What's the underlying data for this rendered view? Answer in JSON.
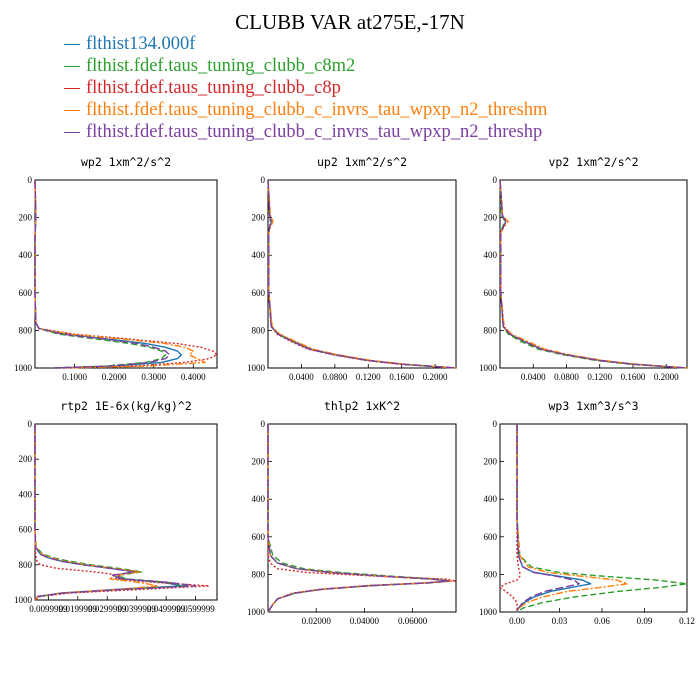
{
  "title": "CLUBB VAR at275E,-17N",
  "legend": [
    {
      "label": "flthist134.000f",
      "color": "#1f77b4",
      "dash": "solid"
    },
    {
      "label": "flthist.fdef.taus_tuning_clubb_c8m2",
      "color": "#2ca02c",
      "dash": "6,3"
    },
    {
      "label": "flthist.fdef.taus_tuning_clubb_c8p",
      "color": "#d62728",
      "dash": "2,2"
    },
    {
      "label": "flthist.fdef.taus_tuning_clubb_c_invrs_tau_wpxp_n2_threshm",
      "color": "#ff7f0e",
      "dash": "7,2,2,2"
    },
    {
      "label": "flthist.fdef.taus_tuning_clubb_c_invrs_tau_wpxp_n2_threshp",
      "color": "#7b3f9e",
      "dash": "8,3"
    }
  ],
  "chart_data": [
    {
      "type": "line",
      "title": "wp2  1xm^2/s^2",
      "xlim": [
        0,
        0.46
      ],
      "ylim": [
        1000,
        0
      ],
      "xticks": [
        0.1,
        0.2,
        0.3,
        0.4
      ],
      "xtick_labels": [
        "0.1000",
        "0.2000",
        "0.3000",
        "0.4000"
      ],
      "yticks": [
        0,
        200,
        400,
        600,
        800,
        1000
      ],
      "ytick_labels": [
        "0",
        "200",
        "400",
        "600",
        "800",
        "1000"
      ],
      "y": [
        0,
        200,
        300,
        600,
        760,
        790,
        820,
        850,
        870,
        890,
        910,
        930,
        950,
        970,
        990,
        1000
      ],
      "series": [
        [
          0.0,
          0.002,
          0.0,
          0.0,
          0.002,
          0.01,
          0.08,
          0.2,
          0.28,
          0.33,
          0.36,
          0.37,
          0.36,
          0.32,
          0.2,
          0.05
        ],
        [
          0.0,
          0.002,
          0.0,
          0.0,
          0.002,
          0.01,
          0.06,
          0.17,
          0.24,
          0.29,
          0.32,
          0.33,
          0.32,
          0.28,
          0.18,
          0.04
        ],
        [
          0.0,
          0.002,
          0.0,
          0.0,
          0.002,
          0.01,
          0.1,
          0.26,
          0.36,
          0.42,
          0.45,
          0.46,
          0.44,
          0.38,
          0.25,
          0.06
        ],
        [
          0.0,
          0.002,
          0.0,
          0.0,
          0.002,
          0.01,
          0.09,
          0.24,
          0.33,
          0.38,
          0.4,
          0.39,
          0.41,
          0.43,
          0.28,
          0.07
        ],
        [
          0.0,
          0.002,
          0.0,
          0.0,
          0.002,
          0.01,
          0.07,
          0.19,
          0.26,
          0.3,
          0.33,
          0.34,
          0.33,
          0.29,
          0.19,
          0.05
        ]
      ]
    },
    {
      "type": "line",
      "title": "up2  1xm^2/s^2",
      "xlim": [
        0,
        0.225
      ],
      "ylim": [
        1000,
        0
      ],
      "xticks": [
        0.04,
        0.08,
        0.12,
        0.16,
        0.2
      ],
      "xtick_labels": [
        "0.0400",
        "0.0800",
        "0.1200",
        "0.1600",
        "0.2000"
      ],
      "yticks": [
        0,
        200,
        400,
        600,
        800,
        1000
      ],
      "ytick_labels": [
        "0",
        "200",
        "400",
        "600",
        "800",
        "1000"
      ],
      "y": [
        0,
        190,
        220,
        250,
        280,
        600,
        780,
        820,
        860,
        900,
        930,
        960,
        980,
        1000
      ],
      "series": [
        [
          0.0,
          0.002,
          0.004,
          0.002,
          0.001,
          0.001,
          0.004,
          0.012,
          0.03,
          0.05,
          0.08,
          0.12,
          0.16,
          0.225
        ],
        [
          0.0,
          0.002,
          0.003,
          0.002,
          0.001,
          0.001,
          0.004,
          0.013,
          0.032,
          0.052,
          0.082,
          0.122,
          0.162,
          0.225
        ],
        [
          0.0,
          0.002,
          0.003,
          0.002,
          0.001,
          0.001,
          0.004,
          0.011,
          0.028,
          0.048,
          0.078,
          0.118,
          0.158,
          0.225
        ],
        [
          0.0,
          0.003,
          0.006,
          0.003,
          0.001,
          0.001,
          0.005,
          0.014,
          0.034,
          0.054,
          0.084,
          0.124,
          0.164,
          0.225
        ],
        [
          0.0,
          0.002,
          0.004,
          0.002,
          0.001,
          0.001,
          0.004,
          0.012,
          0.03,
          0.05,
          0.08,
          0.12,
          0.16,
          0.225
        ]
      ]
    },
    {
      "type": "line",
      "title": "vp2  1xm^2/s^2",
      "xlim": [
        0,
        0.225
      ],
      "ylim": [
        1000,
        0
      ],
      "xticks": [
        0.04,
        0.08,
        0.12,
        0.16,
        0.2
      ],
      "xtick_labels": [
        "0.0400",
        "0.0800",
        "0.1200",
        "0.1600",
        "0.2000"
      ],
      "yticks": [
        0,
        200,
        400,
        600,
        800,
        1000
      ],
      "ytick_labels": [
        "0",
        "200",
        "400",
        "600",
        "800",
        "1000"
      ],
      "y": [
        0,
        190,
        220,
        250,
        280,
        600,
        780,
        820,
        860,
        900,
        930,
        960,
        980,
        1000
      ],
      "series": [
        [
          0.0,
          0.003,
          0.007,
          0.004,
          0.001,
          0.001,
          0.004,
          0.012,
          0.03,
          0.05,
          0.08,
          0.12,
          0.16,
          0.225
        ],
        [
          0.0,
          0.002,
          0.006,
          0.003,
          0.001,
          0.001,
          0.004,
          0.01,
          0.026,
          0.046,
          0.076,
          0.116,
          0.156,
          0.225
        ],
        [
          0.0,
          0.003,
          0.007,
          0.004,
          0.001,
          0.001,
          0.004,
          0.012,
          0.03,
          0.05,
          0.08,
          0.12,
          0.16,
          0.225
        ],
        [
          0.0,
          0.003,
          0.01,
          0.005,
          0.001,
          0.001,
          0.005,
          0.014,
          0.034,
          0.054,
          0.084,
          0.124,
          0.164,
          0.225
        ],
        [
          0.0,
          0.003,
          0.007,
          0.004,
          0.001,
          0.001,
          0.004,
          0.012,
          0.03,
          0.05,
          0.08,
          0.12,
          0.16,
          0.225
        ]
      ]
    },
    {
      "type": "line",
      "title": "rtp2  1E-6x(kg/kg)^2",
      "xlim": [
        0,
        6.8
      ],
      "ylim": [
        1000,
        0
      ],
      "xticks": [
        0.5,
        1.6,
        2.7,
        3.8,
        4.9,
        6.0
      ],
      "xtick_labels": [
        "0.0099999",
        "0.0199999",
        "0.0299999",
        "0.0399999",
        "0.0499999",
        "0.0599999"
      ],
      "yticks": [
        0,
        200,
        400,
        600,
        800,
        1000
      ],
      "ytick_labels": [
        "0",
        "200",
        "400",
        "600",
        "800",
        "1000"
      ],
      "y": [
        0,
        600,
        700,
        740,
        760,
        780,
        800,
        820,
        840,
        860,
        880,
        900,
        920,
        940,
        960,
        980,
        1000
      ],
      "series": [
        [
          0.0,
          0.0,
          0.02,
          0.2,
          0.5,
          1.0,
          1.8,
          2.8,
          3.8,
          2.9,
          3.2,
          4.8,
          5.5,
          3.0,
          1.0,
          0.1,
          0.0
        ],
        [
          0.0,
          0.0,
          0.04,
          0.3,
          0.7,
          1.3,
          2.1,
          3.1,
          4.0,
          3.1,
          3.4,
          5.0,
          5.7,
          3.2,
          1.1,
          0.1,
          0.0
        ],
        [
          0.0,
          0.0,
          0.01,
          0.02,
          0.04,
          0.08,
          0.2,
          0.8,
          2.2,
          3.2,
          3.0,
          4.5,
          6.5,
          4.0,
          1.3,
          0.2,
          0.0
        ],
        [
          0.0,
          0.0,
          0.03,
          0.25,
          0.6,
          1.1,
          1.9,
          2.9,
          3.9,
          3.0,
          2.8,
          3.9,
          4.6,
          3.1,
          1.0,
          0.1,
          0.0
        ],
        [
          0.0,
          0.0,
          0.02,
          0.2,
          0.5,
          1.0,
          1.8,
          2.8,
          3.7,
          2.9,
          3.3,
          5.0,
          6.0,
          3.3,
          1.1,
          0.1,
          0.0
        ]
      ]
    },
    {
      "type": "line",
      "title": "thlp2  1xK^2",
      "xlim": [
        0,
        0.078
      ],
      "ylim": [
        1000,
        0
      ],
      "xticks": [
        0.02,
        0.04,
        0.06
      ],
      "xtick_labels": [
        "0.02000",
        "0.04000",
        "0.06000"
      ],
      "yticks": [
        0,
        200,
        400,
        600,
        800,
        1000
      ],
      "ytick_labels": [
        "0",
        "200",
        "400",
        "600",
        "800",
        "1000"
      ],
      "y": [
        0,
        600,
        700,
        740,
        770,
        790,
        810,
        825,
        835,
        845,
        860,
        880,
        900,
        930,
        960,
        1000
      ],
      "series": [
        [
          0.0,
          0.0,
          0.001,
          0.004,
          0.012,
          0.026,
          0.048,
          0.068,
          0.075,
          0.066,
          0.042,
          0.022,
          0.011,
          0.004,
          0.002,
          0.0
        ],
        [
          0.0,
          0.0,
          0.002,
          0.006,
          0.015,
          0.03,
          0.052,
          0.07,
          0.076,
          0.067,
          0.043,
          0.022,
          0.011,
          0.004,
          0.002,
          0.0
        ],
        [
          0.0,
          0.0,
          0.0,
          0.001,
          0.004,
          0.016,
          0.046,
          0.074,
          0.078,
          0.064,
          0.04,
          0.021,
          0.01,
          0.004,
          0.002,
          0.0
        ],
        [
          0.0,
          0.0,
          0.001,
          0.004,
          0.012,
          0.026,
          0.048,
          0.068,
          0.076,
          0.066,
          0.042,
          0.022,
          0.011,
          0.004,
          0.002,
          0.0
        ],
        [
          0.0,
          0.0,
          0.001,
          0.004,
          0.012,
          0.026,
          0.048,
          0.068,
          0.075,
          0.066,
          0.042,
          0.022,
          0.011,
          0.004,
          0.002,
          0.0
        ]
      ]
    },
    {
      "type": "line",
      "title": "wp3  1xm^3/s^3",
      "xlim": [
        -0.012,
        0.12
      ],
      "ylim": [
        1000,
        0
      ],
      "xticks": [
        0.0,
        0.03,
        0.06,
        0.09,
        0.12
      ],
      "xtick_labels": [
        "0.00",
        "0.03",
        "0.06",
        "0.09",
        "0.12"
      ],
      "yticks": [
        0,
        200,
        400,
        600,
        800,
        1000
      ],
      "ytick_labels": [
        "0",
        "200",
        "400",
        "600",
        "800",
        "1000"
      ],
      "y": [
        0,
        500,
        700,
        760,
        790,
        810,
        830,
        850,
        870,
        890,
        920,
        950,
        980,
        1000
      ],
      "series": [
        [
          0.0,
          0.0,
          0.001,
          0.004,
          0.012,
          0.03,
          0.046,
          0.052,
          0.038,
          0.024,
          0.012,
          0.005,
          0.001,
          0.0
        ],
        [
          0.0,
          0.0,
          0.002,
          0.01,
          0.03,
          0.062,
          0.098,
          0.12,
          0.1,
          0.072,
          0.04,
          0.018,
          0.004,
          0.0
        ],
        [
          0.0,
          0.0,
          0.0,
          0.001,
          0.002,
          0.002,
          0.0,
          -0.008,
          -0.012,
          -0.008,
          -0.003,
          0.0,
          0.0,
          0.0
        ],
        [
          0.0,
          0.0,
          0.002,
          0.008,
          0.022,
          0.046,
          0.07,
          0.078,
          0.058,
          0.036,
          0.018,
          0.007,
          0.001,
          0.0
        ],
        [
          0.0,
          0.0,
          0.001,
          0.004,
          0.012,
          0.028,
          0.04,
          0.044,
          0.032,
          0.02,
          0.01,
          0.004,
          0.001,
          0.0
        ]
      ]
    }
  ]
}
